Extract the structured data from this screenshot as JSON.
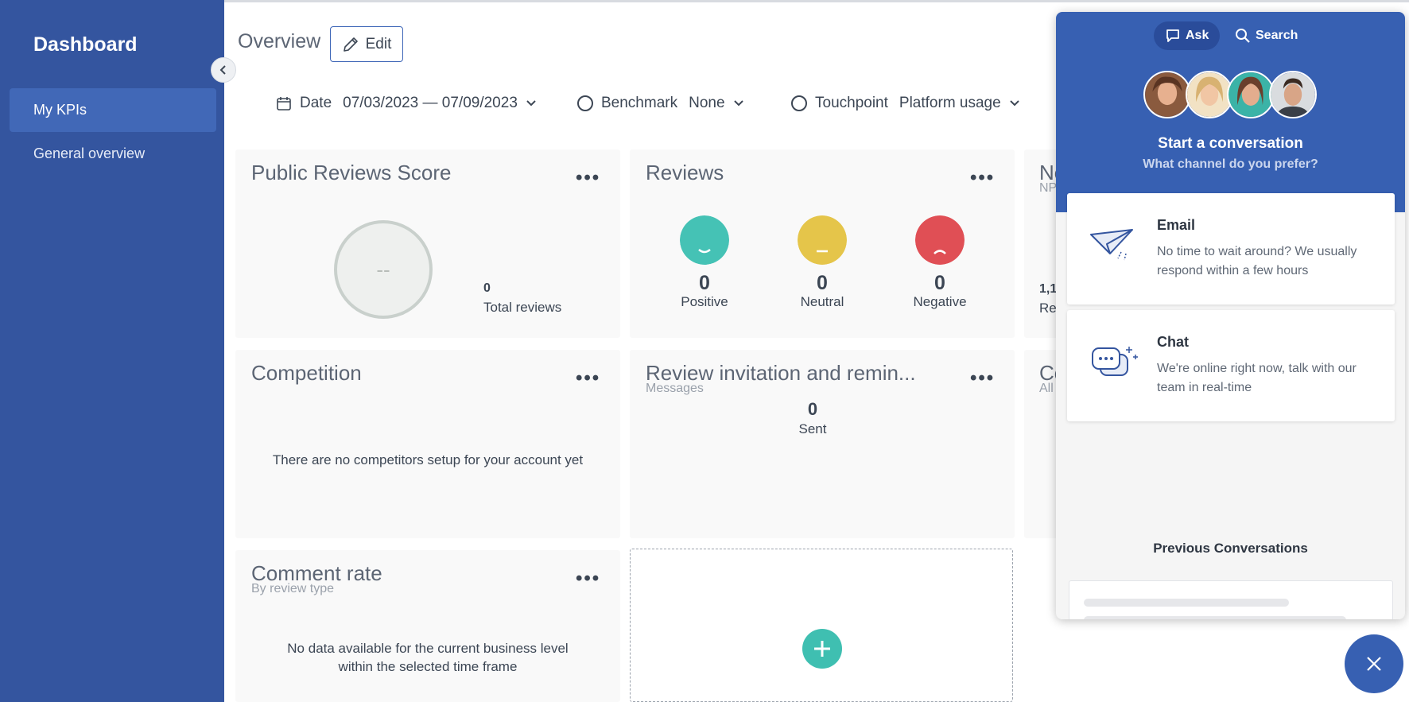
{
  "sidebar": {
    "title": "Dashboard",
    "items": [
      {
        "label": "My KPIs"
      },
      {
        "label": "General overview"
      }
    ]
  },
  "header": {
    "title": "Overview",
    "edit_label": "Edit"
  },
  "filters": {
    "date": {
      "label": "Date",
      "value": "07/03/2023 — 07/09/2023"
    },
    "benchmark": {
      "label": "Benchmark",
      "value": "None"
    },
    "touchpoint": {
      "label": "Touchpoint",
      "value": "Platform usage"
    }
  },
  "cards": {
    "public_reviews": {
      "title": "Public Reviews Score",
      "score": "--",
      "total": "0",
      "total_label": "Total reviews"
    },
    "reviews": {
      "title": "Reviews",
      "positive": {
        "value": "0",
        "label": "Positive",
        "color": "#45c2b5"
      },
      "neutral": {
        "value": "0",
        "label": "Neutral",
        "color": "#e5c54a"
      },
      "negative": {
        "value": "0",
        "label": "Negative",
        "color": "#e04f55"
      }
    },
    "nps": {
      "title": "Ne",
      "subtitle": "NP",
      "value": "1,1",
      "label": "Rev"
    },
    "competition": {
      "title": "Competition",
      "message": "There are no competitors setup for your account yet"
    },
    "review_invitation": {
      "title": "Review invitation and remin...",
      "subtitle": "Messages",
      "value": "0",
      "label": "Sent"
    },
    "cut_card": {
      "title": "Co",
      "subtitle": "All"
    },
    "comment_rate": {
      "title": "Comment rate",
      "subtitle": "By review type",
      "message": "No data available for the current business level within the selected time frame"
    }
  },
  "more_symbol": "•••",
  "widget": {
    "tabs": [
      {
        "label": "Ask"
      },
      {
        "label": "Search"
      }
    ],
    "title": "Start a conversation",
    "subtitle": "What channel do you prefer?",
    "channels": [
      {
        "title": "Email",
        "description": "No time to wait around? We usually respond within a few hours"
      },
      {
        "title": "Chat",
        "description": "We're online right now, talk with our team in real-time"
      }
    ],
    "previous_title": "Previous Conversations"
  },
  "colors": {
    "sidebar": "#34559f",
    "accent": "#3760b2",
    "add_button": "#3fbfb1"
  }
}
